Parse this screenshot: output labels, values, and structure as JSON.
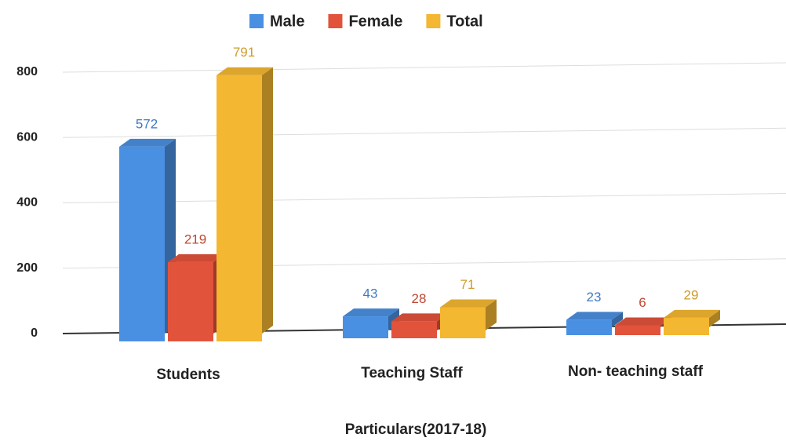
{
  "chart_data": {
    "type": "bar3d",
    "x_label": "Particulars(2017-18)",
    "categories": [
      "Students",
      "Teaching Staff",
      "Non- teaching staff"
    ],
    "series": [
      {
        "name": "Male",
        "color": "#4a90e2",
        "values": [
          572,
          43,
          23
        ]
      },
      {
        "name": "Female",
        "color": "#e2533c",
        "values": [
          219,
          28,
          6
        ]
      },
      {
        "name": "Total",
        "color": "#f4b731",
        "values": [
          791,
          71,
          29
        ]
      }
    ],
    "ylim": [
      0,
      800
    ],
    "yticks": [
      0,
      200,
      400,
      600,
      800
    ],
    "grid": true
  }
}
